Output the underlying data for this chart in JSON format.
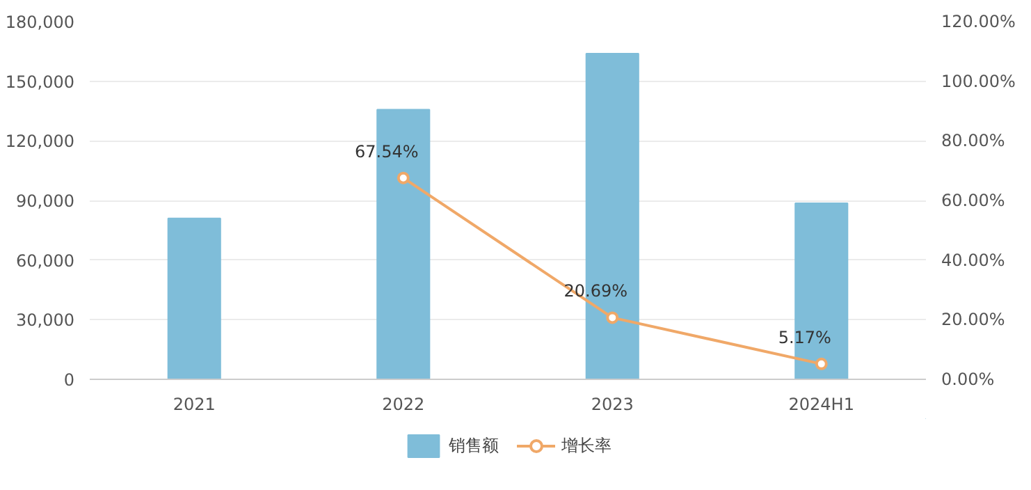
{
  "chart_data": {
    "type": "bar",
    "categories": [
      "2021",
      "2022",
      "2023",
      "2024H1"
    ],
    "series": [
      {
        "name": "销售额",
        "color": "#7fbdd9",
        "values": [
          81000,
          135700,
          163900,
          88600
        ]
      },
      {
        "name": "增长率",
        "type": "line",
        "axis": "y2",
        "color": "#f0a868",
        "values": [
          null,
          67.54,
          20.69,
          5.17
        ],
        "value_labels": [
          null,
          "67.54%",
          "20.69%",
          "5.17%"
        ]
      }
    ],
    "ylim": [
      0,
      180000
    ],
    "yticks": [
      0,
      {
        "value": 30000,
        "label": "30,000"
      },
      {
        "value": 60000,
        "label": "60,000"
      },
      {
        "value": 90000,
        "label": "90,000"
      },
      {
        "value": 120000,
        "label": "120,000"
      },
      {
        "value": 150000,
        "label": "150,000"
      },
      {
        "value": 180000,
        "label": "180,000"
      }
    ],
    "y2lim": [
      0,
      120
    ],
    "y2ticks": [
      {
        "value": 0,
        "label": "0.00%"
      },
      {
        "value": 20,
        "label": "20.00%"
      },
      {
        "value": 40,
        "label": "40.00%"
      },
      {
        "value": 60,
        "label": "60.00%"
      },
      {
        "value": 80,
        "label": "80.00%"
      },
      {
        "value": 100,
        "label": "100.00%"
      },
      {
        "value": 120,
        "label": "120.00%"
      }
    ],
    "grid": "y",
    "legend": "bottom",
    "marker": "circle",
    "line_style": "solid"
  }
}
